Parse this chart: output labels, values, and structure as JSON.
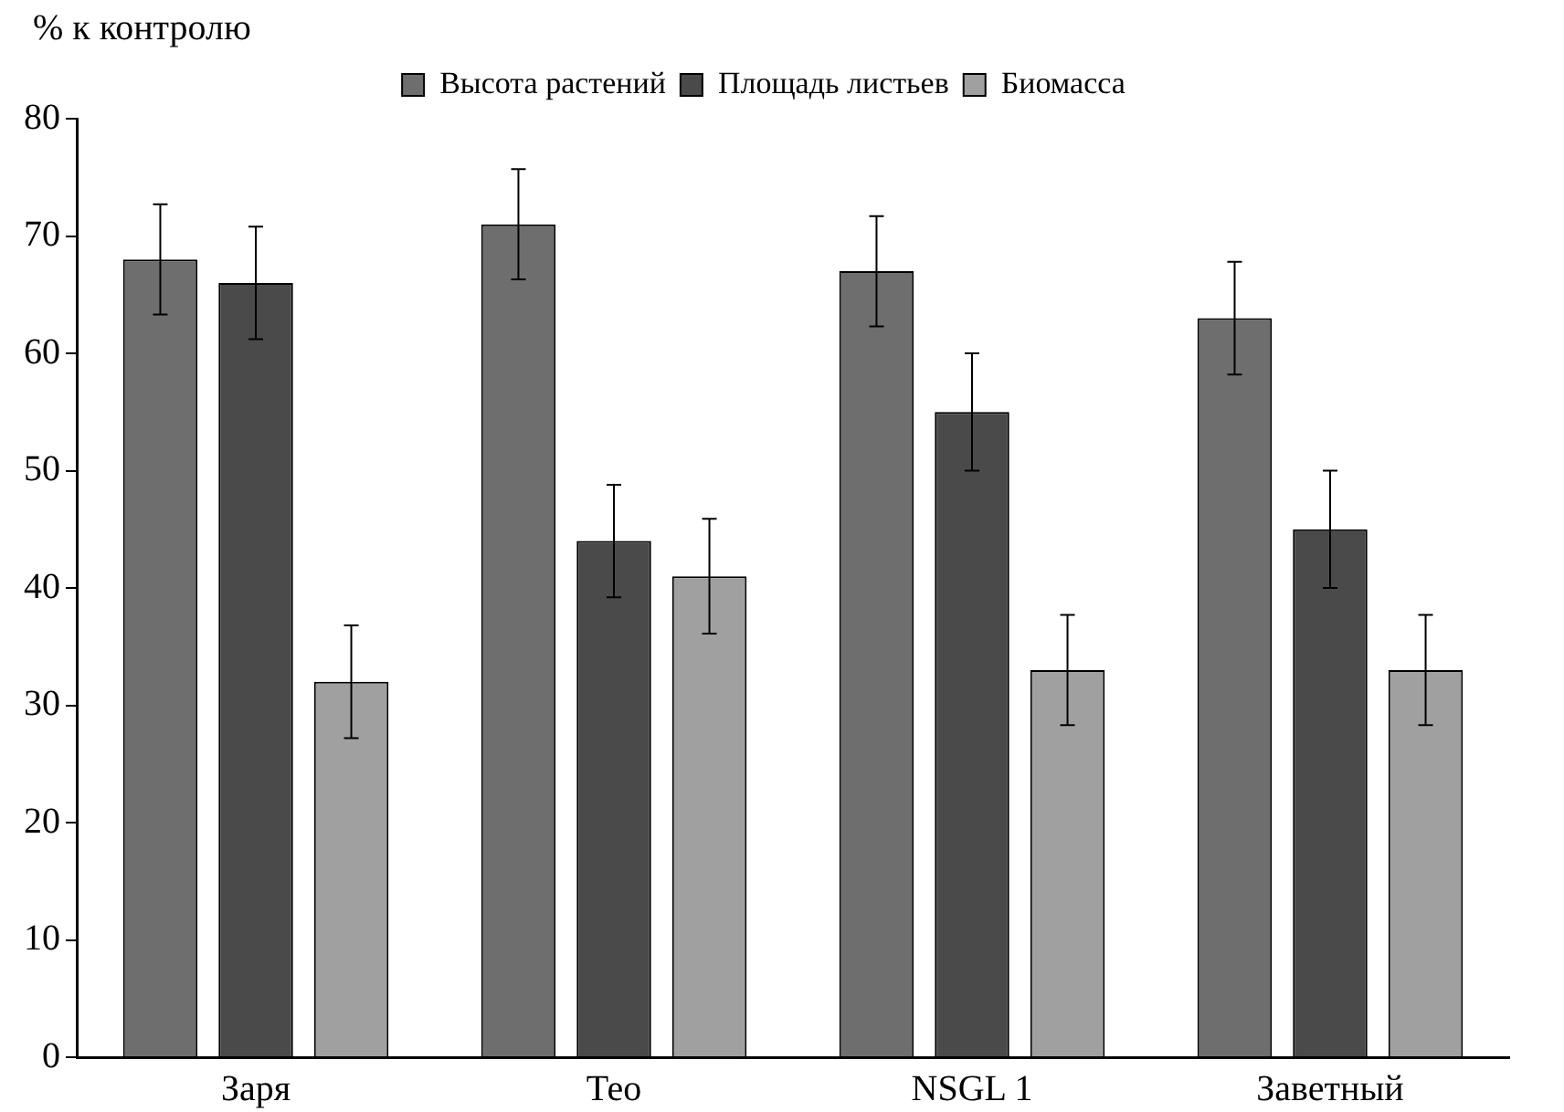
{
  "chart_data": {
    "type": "bar",
    "ylabel": "% к контролю",
    "categories": [
      "Заря",
      "Тео",
      "NSGL 1",
      "Заветный"
    ],
    "series": [
      {
        "name": "Высота растений",
        "color": "#6e6e6e",
        "values": [
          68,
          71,
          67,
          63
        ],
        "errors": [
          4.7,
          4.7,
          4.7,
          4.8
        ]
      },
      {
        "name": "Площадь листьев",
        "color": "#4a4a4a",
        "values": [
          66,
          44,
          55,
          45
        ],
        "errors": [
          4.8,
          4.8,
          5,
          5
        ]
      },
      {
        "name": "Биомасса",
        "color": "#a0a0a0",
        "values": [
          32,
          41,
          33,
          33
        ],
        "errors": [
          4.8,
          4.9,
          4.7,
          4.7
        ]
      }
    ],
    "ylim": [
      0,
      80
    ],
    "yticks": [
      0,
      10,
      20,
      30,
      40,
      50,
      60,
      70,
      80
    ],
    "grid": false,
    "legend": "top"
  }
}
